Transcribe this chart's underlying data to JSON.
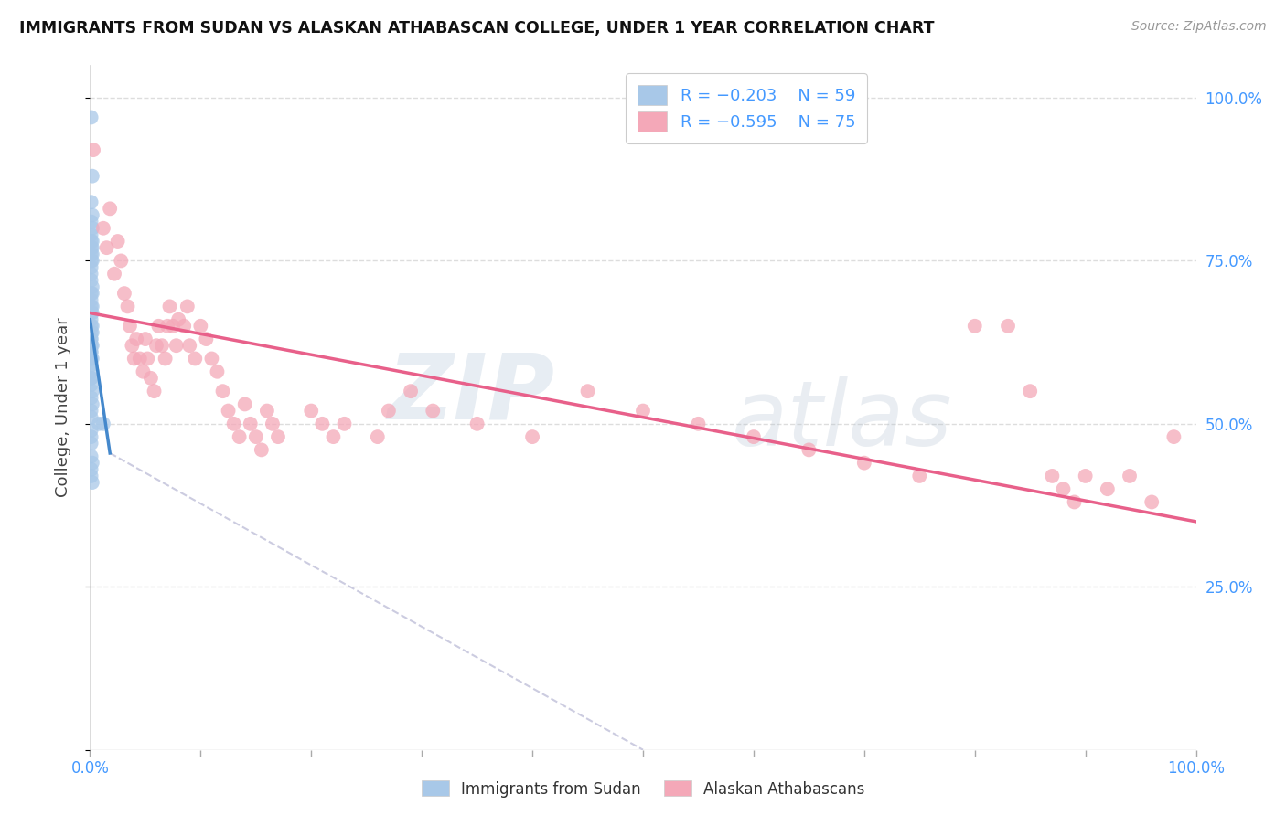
{
  "title": "IMMIGRANTS FROM SUDAN VS ALASKAN ATHABASCAN COLLEGE, UNDER 1 YEAR CORRELATION CHART",
  "source": "Source: ZipAtlas.com",
  "ylabel": "College, Under 1 year",
  "legend_label1": "Immigrants from Sudan",
  "legend_label2": "Alaskan Athabascans",
  "color_blue": "#a8c8e8",
  "color_pink": "#f4a8b8",
  "color_blue_line": "#4488cc",
  "color_pink_line": "#e8608a",
  "color_axis_text": "#4499ff",
  "background": "#ffffff",
  "grid_color": "#dddddd",
  "watermark_zip": "ZIP",
  "watermark_atlas": "atlas",
  "sudan_x": [
    0.001,
    0.002,
    0.001,
    0.002,
    0.001,
    0.002,
    0.001,
    0.001,
    0.002,
    0.001,
    0.002,
    0.001,
    0.002,
    0.001,
    0.002,
    0.001,
    0.001,
    0.001,
    0.002,
    0.001,
    0.002,
    0.001,
    0.001,
    0.002,
    0.001,
    0.002,
    0.001,
    0.001,
    0.002,
    0.001,
    0.002,
    0.001,
    0.001,
    0.001,
    0.002,
    0.001,
    0.001,
    0.002,
    0.001,
    0.001,
    0.002,
    0.001,
    0.001,
    0.001,
    0.002,
    0.001,
    0.002,
    0.001,
    0.001,
    0.012,
    0.008,
    0.001,
    0.001,
    0.001,
    0.001,
    0.002,
    0.001,
    0.001,
    0.002
  ],
  "sudan_y": [
    0.97,
    0.88,
    0.84,
    0.82,
    0.81,
    0.8,
    0.79,
    0.78,
    0.78,
    0.77,
    0.77,
    0.76,
    0.76,
    0.75,
    0.75,
    0.74,
    0.73,
    0.72,
    0.71,
    0.7,
    0.7,
    0.69,
    0.68,
    0.68,
    0.67,
    0.67,
    0.66,
    0.65,
    0.65,
    0.64,
    0.64,
    0.63,
    0.63,
    0.62,
    0.62,
    0.61,
    0.61,
    0.6,
    0.6,
    0.59,
    0.58,
    0.57,
    0.57,
    0.56,
    0.55,
    0.54,
    0.53,
    0.52,
    0.51,
    0.5,
    0.5,
    0.49,
    0.48,
    0.47,
    0.45,
    0.44,
    0.43,
    0.42,
    0.41
  ],
  "alaska_x": [
    0.003,
    0.012,
    0.015,
    0.018,
    0.022,
    0.025,
    0.028,
    0.031,
    0.034,
    0.036,
    0.038,
    0.04,
    0.042,
    0.045,
    0.048,
    0.05,
    0.052,
    0.055,
    0.058,
    0.06,
    0.062,
    0.065,
    0.068,
    0.07,
    0.072,
    0.075,
    0.078,
    0.08,
    0.085,
    0.088,
    0.09,
    0.095,
    0.1,
    0.105,
    0.11,
    0.115,
    0.12,
    0.125,
    0.13,
    0.135,
    0.14,
    0.145,
    0.15,
    0.155,
    0.16,
    0.165,
    0.17,
    0.2,
    0.21,
    0.22,
    0.23,
    0.26,
    0.27,
    0.29,
    0.31,
    0.35,
    0.4,
    0.45,
    0.5,
    0.55,
    0.6,
    0.65,
    0.7,
    0.75,
    0.8,
    0.83,
    0.85,
    0.87,
    0.88,
    0.89,
    0.9,
    0.92,
    0.94,
    0.96,
    0.98
  ],
  "alaska_y": [
    0.92,
    0.8,
    0.77,
    0.83,
    0.73,
    0.78,
    0.75,
    0.7,
    0.68,
    0.65,
    0.62,
    0.6,
    0.63,
    0.6,
    0.58,
    0.63,
    0.6,
    0.57,
    0.55,
    0.62,
    0.65,
    0.62,
    0.6,
    0.65,
    0.68,
    0.65,
    0.62,
    0.66,
    0.65,
    0.68,
    0.62,
    0.6,
    0.65,
    0.63,
    0.6,
    0.58,
    0.55,
    0.52,
    0.5,
    0.48,
    0.53,
    0.5,
    0.48,
    0.46,
    0.52,
    0.5,
    0.48,
    0.52,
    0.5,
    0.48,
    0.5,
    0.48,
    0.52,
    0.55,
    0.52,
    0.5,
    0.48,
    0.55,
    0.52,
    0.5,
    0.48,
    0.46,
    0.44,
    0.42,
    0.65,
    0.65,
    0.55,
    0.42,
    0.4,
    0.38,
    0.42,
    0.4,
    0.42,
    0.38,
    0.48
  ],
  "sudan_line_x0": 0.0,
  "sudan_line_y0": 0.66,
  "sudan_line_x1": 0.018,
  "sudan_line_y1": 0.455,
  "dashed_line_x0": 0.018,
  "dashed_line_y0": 0.455,
  "dashed_line_x1": 0.5,
  "dashed_line_y1": 0.0,
  "alaska_line_x0": 0.0,
  "alaska_line_y0": 0.67,
  "alaska_line_x1": 1.0,
  "alaska_line_y1": 0.35,
  "xlim": [
    0,
    1.0
  ],
  "ylim": [
    0,
    1.05
  ],
  "right_yticks": [
    0.25,
    0.5,
    0.75,
    1.0
  ],
  "right_yticklabels": [
    "25.0%",
    "50.0%",
    "75.0%",
    "100.0%"
  ]
}
